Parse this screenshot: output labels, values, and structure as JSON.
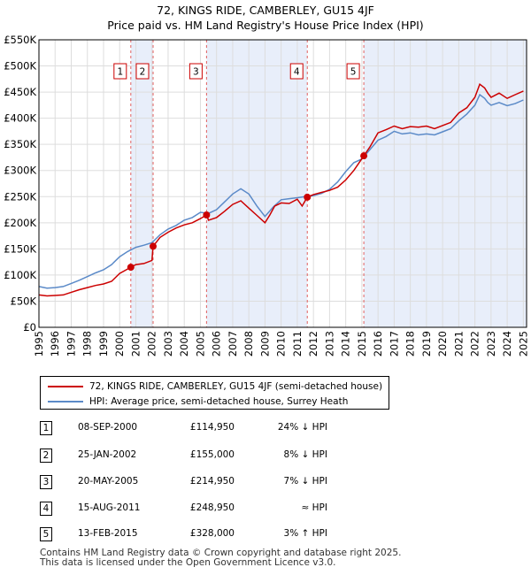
{
  "header": {
    "title_line1": "72, KINGS RIDE, CAMBERLEY, GU15 4JF",
    "title_line2": "Price paid vs. HM Land Registry's House Price Index (HPI)"
  },
  "legend": {
    "items": [
      {
        "label": "72, KINGS RIDE, CAMBERLEY, GU15 4JF (semi-detached house)",
        "color": "#cc0000"
      },
      {
        "label": "HPI: Average price, semi-detached house, Surrey Heath",
        "color": "#5b8ac8"
      }
    ]
  },
  "transactions": [
    {
      "num": "1",
      "date": "08-SEP-2000",
      "price": "£114,950",
      "hpi": "24% ↓ HPI"
    },
    {
      "num": "2",
      "date": "25-JAN-2002",
      "price": "£155,000",
      "hpi": "8% ↓ HPI"
    },
    {
      "num": "3",
      "date": "20-MAY-2005",
      "price": "£214,950",
      "hpi": "7% ↓ HPI"
    },
    {
      "num": "4",
      "date": "15-AUG-2011",
      "price": "£248,950",
      "hpi": "≈ HPI"
    },
    {
      "num": "5",
      "date": "13-FEB-2015",
      "price": "£328,000",
      "hpi": "3% ↑ HPI"
    }
  ],
  "footer": {
    "line1": "Contains HM Land Registry data © Crown copyright and database right 2025.",
    "line2": "This data is licensed under the Open Government Licence v3.0."
  },
  "chart_data": {
    "type": "line",
    "xlim": [
      1995,
      2025.2
    ],
    "ylim": [
      0,
      550000
    ],
    "y_ticks": [
      0,
      50000,
      100000,
      150000,
      200000,
      250000,
      300000,
      350000,
      400000,
      450000,
      500000,
      550000
    ],
    "y_tick_labels": [
      "£0",
      "£50K",
      "£100K",
      "£150K",
      "£200K",
      "£250K",
      "£300K",
      "£350K",
      "£400K",
      "£450K",
      "£500K",
      "£550K"
    ],
    "x_ticks": [
      1995,
      1996,
      1997,
      1998,
      1999,
      2000,
      2001,
      2002,
      2003,
      2004,
      2005,
      2006,
      2007,
      2008,
      2009,
      2010,
      2011,
      2012,
      2013,
      2014,
      2015,
      2016,
      2017,
      2018,
      2019,
      2020,
      2021,
      2022,
      2023,
      2024,
      2025
    ],
    "grid": true,
    "colors": {
      "property": "#cc0000",
      "hpi": "#5b8ac8",
      "shade": "#e8eefa",
      "marker_line": "#e06060",
      "grid": "#dddddd"
    },
    "series": [
      {
        "name": "72, KINGS RIDE, CAMBERLEY, GU15 4JF (semi-detached house)",
        "x": [
          1995,
          1995.5,
          1996,
          1996.5,
          1997,
          1997.5,
          1998,
          1998.5,
          1999,
          1999.5,
          2000,
          2000.69,
          2001,
          2001.5,
          2002.0,
          2002.07,
          2002.5,
          2003,
          2003.5,
          2004,
          2004.5,
          2005,
          2005.38,
          2005.5,
          2006,
          2006.5,
          2007,
          2007.5,
          2008,
          2008.5,
          2009,
          2009.3,
          2009.6,
          2010,
          2010.5,
          2011,
          2011.3,
          2011.62,
          2012,
          2012.5,
          2013,
          2013.5,
          2014,
          2014.5,
          2015.12,
          2015.5,
          2016,
          2016.5,
          2017,
          2017.5,
          2018,
          2018.5,
          2019,
          2019.5,
          2020,
          2020.5,
          2021,
          2021.5,
          2022,
          2022.3,
          2022.6,
          2022.8,
          2023,
          2023.5,
          2024,
          2024.5,
          2025
        ],
        "values": [
          62000,
          60000,
          61000,
          62000,
          67000,
          72000,
          76000,
          80000,
          83000,
          88000,
          103000,
          114950,
          120000,
          122000,
          128000,
          155000,
          172000,
          182000,
          190000,
          196000,
          200000,
          208000,
          214950,
          205000,
          210000,
          222000,
          235000,
          242000,
          228000,
          214000,
          200000,
          215000,
          232000,
          238000,
          237000,
          245000,
          232000,
          248950,
          254000,
          258000,
          262000,
          268000,
          282000,
          300000,
          328000,
          345000,
          372000,
          378000,
          385000,
          380000,
          384000,
          383000,
          385000,
          380000,
          386000,
          392000,
          410000,
          420000,
          440000,
          465000,
          458000,
          448000,
          440000,
          448000,
          438000,
          445000,
          452000
        ]
      },
      {
        "name": "HPI: Average price, semi-detached house, Surrey Heath",
        "x": [
          1995,
          1995.5,
          1996,
          1996.5,
          1997,
          1997.5,
          1998,
          1998.5,
          1999,
          1999.5,
          2000,
          2000.5,
          2001,
          2001.5,
          2002,
          2002.5,
          2003,
          2003.5,
          2004,
          2004.5,
          2005,
          2005.5,
          2006,
          2006.5,
          2007,
          2007.5,
          2008,
          2008.5,
          2009,
          2009.5,
          2010,
          2010.5,
          2011,
          2011.5,
          2012,
          2012.5,
          2013,
          2013.5,
          2014,
          2014.5,
          2015,
          2015.5,
          2016,
          2016.5,
          2017,
          2017.5,
          2018,
          2018.5,
          2019,
          2019.5,
          2020,
          2020.5,
          2021,
          2021.5,
          2022,
          2022.3,
          2022.6,
          2022.8,
          2023,
          2023.5,
          2024,
          2024.5,
          2025
        ],
        "values": [
          78000,
          75000,
          76000,
          78000,
          84000,
          90000,
          97000,
          104000,
          110000,
          120000,
          135000,
          145000,
          153000,
          157000,
          162000,
          177000,
          188000,
          195000,
          205000,
          210000,
          220000,
          218000,
          225000,
          240000,
          255000,
          265000,
          255000,
          232000,
          212000,
          230000,
          244000,
          246000,
          248000,
          250000,
          252000,
          256000,
          264000,
          278000,
          298000,
          315000,
          322000,
          340000,
          358000,
          365000,
          375000,
          370000,
          372000,
          368000,
          370000,
          368000,
          374000,
          380000,
          395000,
          408000,
          425000,
          445000,
          438000,
          430000,
          425000,
          430000,
          424000,
          428000,
          435000
        ]
      }
    ],
    "sales": [
      {
        "label": "1",
        "x": 2000.69,
        "y": 114950
      },
      {
        "label": "2",
        "x": 2002.07,
        "y": 155000
      },
      {
        "label": "3",
        "x": 2005.38,
        "y": 214950
      },
      {
        "label": "4",
        "x": 2011.62,
        "y": 248950
      },
      {
        "label": "5",
        "x": 2015.12,
        "y": 328000
      }
    ],
    "shaded_spans": [
      [
        2000.69,
        2002.07
      ],
      [
        2005.38,
        2011.62
      ],
      [
        2015.12,
        2025.2
      ]
    ]
  }
}
